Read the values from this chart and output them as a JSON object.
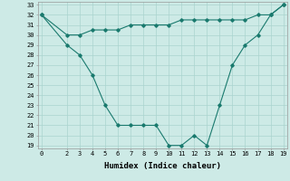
{
  "xlabel": "Humidex (Indice chaleur)",
  "x": [
    0,
    2,
    3,
    4,
    5,
    6,
    7,
    8,
    9,
    10,
    11,
    12,
    13,
    14,
    15,
    16,
    17,
    18,
    19
  ],
  "line1": [
    32,
    29,
    28,
    26,
    23,
    21,
    21,
    21,
    21,
    19,
    19,
    20,
    19,
    23,
    27,
    29,
    30,
    32,
    33
  ],
  "line2": [
    32,
    30,
    30,
    30.5,
    30.5,
    30.5,
    31,
    31,
    31,
    31,
    31.5,
    31.5,
    31.5,
    31.5,
    31.5,
    31.5,
    32,
    32,
    33
  ],
  "line_color": "#1a7a6e",
  "bg_color": "#cdeae6",
  "grid_color": "#aad4ce",
  "ylim": [
    19,
    33
  ],
  "xlim": [
    -0.3,
    19.3
  ],
  "yticks": [
    19,
    20,
    21,
    22,
    23,
    24,
    25,
    26,
    27,
    28,
    29,
    30,
    31,
    32,
    33
  ],
  "xticks": [
    0,
    2,
    3,
    4,
    5,
    6,
    7,
    8,
    9,
    10,
    11,
    12,
    13,
    14,
    15,
    16,
    17,
    18,
    19
  ],
  "tick_fontsize": 5.0,
  "xlabel_fontsize": 6.5
}
